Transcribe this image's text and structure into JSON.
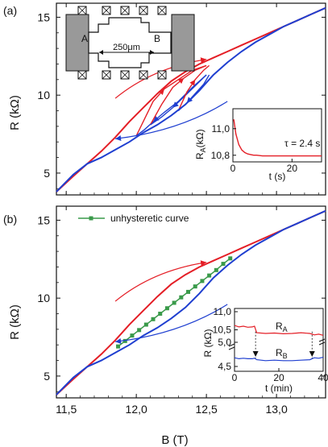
{
  "chart_data": [
    {
      "panel": "(a)",
      "type": "line",
      "xlabel": "",
      "ylabel": "R (kΩ)",
      "xlim": [
        11.43,
        13.35
      ],
      "ylim": [
        3.6,
        15.9
      ],
      "xticks": [],
      "yticks": [
        "5",
        "10",
        "15"
      ],
      "series": [
        {
          "color": "#e41e26",
          "x": [
            11.43,
            11.55,
            11.65,
            11.75,
            11.85,
            11.95,
            12.05,
            12.15,
            12.25,
            12.35,
            12.45,
            12.55,
            12.65,
            12.75,
            12.85,
            12.95,
            13.05,
            13.15,
            13.25,
            13.35
          ],
          "values": [
            3.8,
            4.8,
            5.6,
            6.4,
            7.3,
            8.3,
            9.2,
            10.1,
            10.9,
            11.5,
            12.0,
            12.4,
            12.8,
            13.2,
            13.6,
            14.0,
            14.4,
            14.8,
            15.2,
            15.6
          ]
        },
        {
          "color": "#1f3fd0",
          "x": [
            11.43,
            11.55,
            11.65,
            11.75,
            11.85,
            11.95,
            12.05,
            12.15,
            12.25,
            12.35,
            12.45,
            12.55,
            12.65,
            12.75,
            12.85,
            12.95,
            13.05,
            13.15,
            13.25,
            13.35
          ],
          "values": [
            3.8,
            4.9,
            5.6,
            6.0,
            6.5,
            7.0,
            7.6,
            8.1,
            8.7,
            9.4,
            10.3,
            11.3,
            12.1,
            12.8,
            13.4,
            13.9,
            14.4,
            14.8,
            15.2,
            15.6
          ]
        }
      ],
      "hysteresis_loops": [
        {
          "x": [
            12.0,
            12.06,
            12.12,
            12.2,
            12.3,
            12.4,
            12.5
          ],
          "up": [
            7.4,
            8.5,
            9.6,
            10.4,
            11.0,
            11.6,
            11.9
          ],
          "down": [
            7.4,
            7.8,
            8.3,
            8.9,
            9.6,
            10.5,
            11.3
          ]
        },
        {
          "x": [
            12.1,
            12.18,
            12.26,
            12.34,
            12.42,
            12.5
          ],
          "up": [
            8.1,
            9.4,
            10.5,
            11.1,
            11.6,
            11.9
          ],
          "down": [
            8.1,
            8.6,
            9.2,
            9.9,
            10.6,
            11.3
          ]
        },
        {
          "x": [
            12.3,
            12.36,
            12.42,
            12.48,
            12.52
          ],
          "up": [
            9.0,
            10.2,
            11.0,
            11.6,
            11.9
          ],
          "down": [
            9.0,
            9.5,
            10.1,
            10.7,
            11.3
          ]
        }
      ],
      "sweep_arrows": [
        {
          "color": "#e41e26",
          "direction": "increasing B",
          "x": [
            11.85,
            12.5
          ],
          "y": [
            9.8,
            12.3
          ]
        },
        {
          "color": "#1f3fd0",
          "direction": "decreasing B",
          "x": [
            12.65,
            11.85
          ],
          "y": [
            9.6,
            7.2
          ]
        }
      ],
      "inset_device": {
        "labels": [
          "A",
          "B"
        ],
        "scale_label": "250μm"
      },
      "inset": {
        "type": "line",
        "xlabel": "t (s)",
        "ylabel": "RA(kΩ)",
        "ylabel_main": "R",
        "ylabel_sub": "A",
        "ylabel_unit": "(kΩ)",
        "xlim": [
          0,
          30
        ],
        "ylim": [
          10.75,
          11.15
        ],
        "xticks": [
          "0",
          "20"
        ],
        "yticks": [
          "11,0",
          "10,8"
        ],
        "annotation": "τ = 2.4 s",
        "series": [
          {
            "color": "#e41e26",
            "x": [
              0.3,
              1,
              2,
              3,
              4,
              5,
              6,
              7,
              8,
              10,
              12,
              15,
              20,
              25,
              30
            ],
            "values": [
              11.07,
              10.96,
              10.88,
              10.84,
              10.82,
              10.81,
              10.805,
              10.8,
              10.8,
              10.795,
              10.795,
              10.795,
              10.795,
              10.795,
              10.795
            ]
          }
        ]
      }
    },
    {
      "panel": "(b)",
      "type": "line",
      "xlabel": "B (T)",
      "ylabel": "R (kΩ)",
      "xlim": [
        11.43,
        13.35
      ],
      "ylim": [
        3.6,
        15.9
      ],
      "xticks": [
        "11,5",
        "12,0",
        "12,5",
        "13,0"
      ],
      "yticks": [
        "5",
        "10",
        "15"
      ],
      "legend": {
        "label": "unhysteretic curve",
        "color": "#3a9a4a",
        "position": "top-left"
      },
      "series": [
        {
          "color": "#e41e26",
          "x": [
            11.43,
            11.55,
            11.65,
            11.75,
            11.85,
            11.95,
            12.05,
            12.15,
            12.25,
            12.35,
            12.45,
            12.55,
            12.65,
            12.75,
            12.85,
            12.95,
            13.05,
            13.15,
            13.25,
            13.35
          ],
          "values": [
            3.8,
            4.8,
            5.6,
            6.4,
            7.3,
            8.3,
            9.2,
            10.1,
            10.9,
            11.5,
            12.0,
            12.4,
            12.8,
            13.2,
            13.6,
            14.0,
            14.4,
            14.8,
            15.2,
            15.6
          ]
        },
        {
          "color": "#1f3fd0",
          "x": [
            11.43,
            11.55,
            11.65,
            11.75,
            11.85,
            11.95,
            12.05,
            12.15,
            12.25,
            12.35,
            12.45,
            12.55,
            12.65,
            12.75,
            12.85,
            12.95,
            13.05,
            13.15,
            13.25,
            13.35
          ],
          "values": [
            3.8,
            4.9,
            5.6,
            6.0,
            6.5,
            7.0,
            7.6,
            8.1,
            8.7,
            9.4,
            10.3,
            11.3,
            12.1,
            12.8,
            13.4,
            13.9,
            14.4,
            14.8,
            15.2,
            15.6
          ]
        },
        {
          "name": "unhysteretic curve",
          "color": "#3a9a4a",
          "markers": true,
          "x": [
            11.87,
            11.92,
            11.97,
            12.02,
            12.07,
            12.12,
            12.17,
            12.22,
            12.27,
            12.32,
            12.37,
            12.42,
            12.47,
            12.52,
            12.57,
            12.62,
            12.67
          ],
          "values": [
            6.9,
            7.25,
            7.6,
            7.95,
            8.3,
            8.65,
            9.0,
            9.35,
            9.7,
            10.05,
            10.4,
            10.75,
            11.1,
            11.45,
            11.8,
            12.2,
            12.55
          ]
        }
      ],
      "sweep_arrows": [
        {
          "color": "#e41e26",
          "direction": "increasing B",
          "x": [
            11.85,
            12.5
          ],
          "y": [
            9.8,
            12.3
          ]
        },
        {
          "color": "#1f3fd0",
          "direction": "decreasing B",
          "x": [
            12.65,
            11.85
          ],
          "y": [
            9.6,
            7.2
          ]
        }
      ],
      "inset": {
        "type": "line",
        "xlabel": "t (min)",
        "ylabel": "R (kΩ)",
        "xlim": [
          0,
          40
        ],
        "xticks": [
          "0",
          "20",
          "40"
        ],
        "yticks_top": [
          "11,0",
          "10,5"
        ],
        "yticks_bottom": [
          "5,0",
          "4,5"
        ],
        "annotations": [
          {
            "main": "R",
            "sub": "A"
          },
          {
            "main": "R",
            "sub": "B"
          }
        ],
        "series": [
          {
            "color": "#e41e26",
            "note": "RA, upper broken axis (10,5–11,0 scale)",
            "x": [
              0,
              2,
              4,
              6,
              8,
              9,
              10,
              14,
              18,
              22,
              26,
              30,
              34,
              36,
              38,
              40
            ],
            "values": [
              10.62,
              10.58,
              10.6,
              10.57,
              10.58,
              10.6,
              10.42,
              10.4,
              10.41,
              10.39,
              10.4,
              10.42,
              10.4,
              10.36,
              10.38,
              10.35
            ]
          },
          {
            "color": "#1f3fd0",
            "note": "RB, lower broken axis (4,5–5,0 scale)",
            "x": [
              0,
              2,
              4,
              6,
              8,
              9,
              10,
              14,
              18,
              22,
              26,
              30,
              34,
              36,
              38,
              40
            ],
            "values": [
              4.68,
              4.66,
              4.67,
              4.66,
              4.66,
              4.67,
              4.64,
              4.62,
              4.63,
              4.62,
              4.62,
              4.63,
              4.64,
              4.68,
              4.67,
              4.69
            ]
          }
        ]
      }
    }
  ]
}
